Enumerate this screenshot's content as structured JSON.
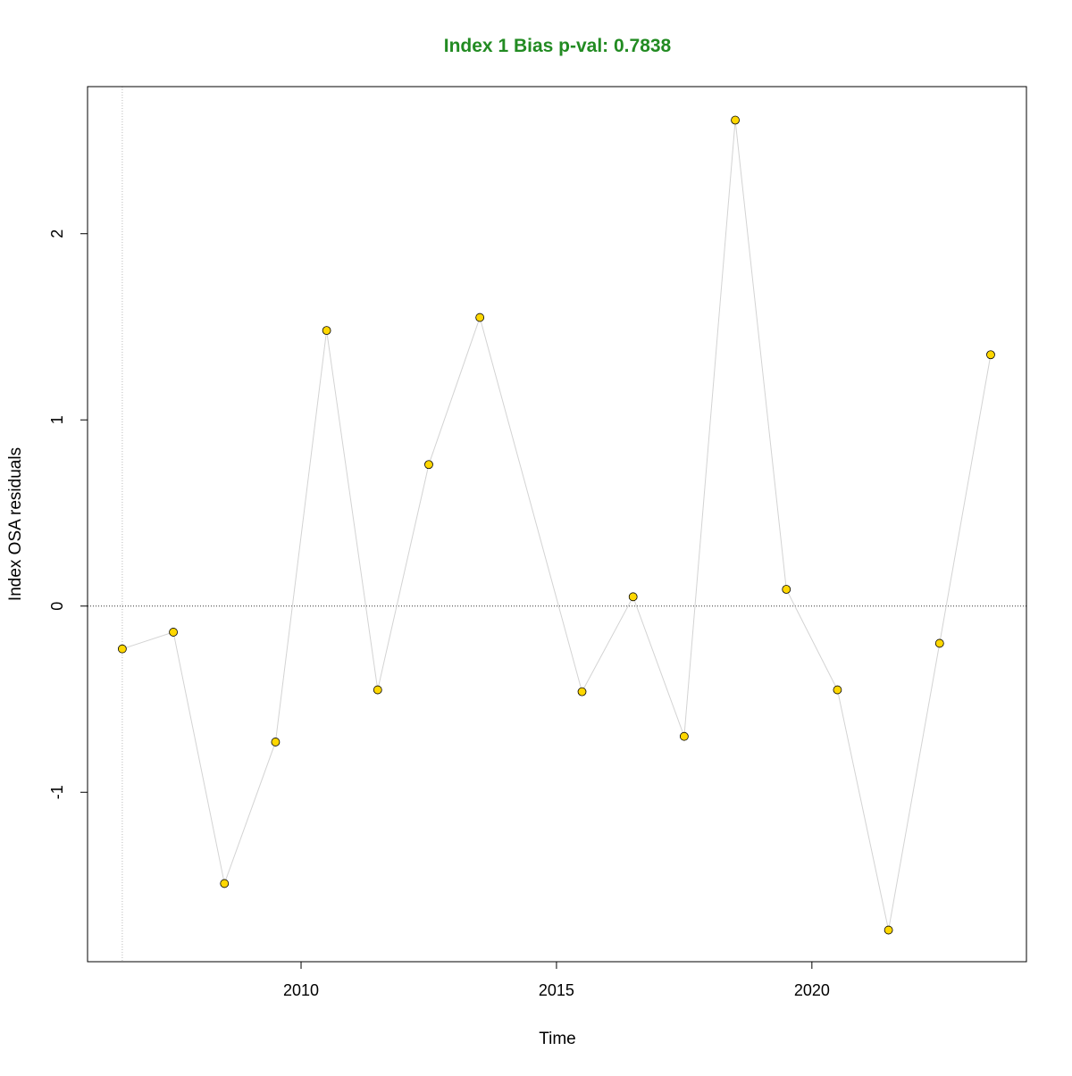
{
  "chart_data": {
    "type": "line",
    "title": "Index 1 Bias p-val: 0.7838",
    "title_color": "#228B22",
    "xlabel": "Time",
    "ylabel": "Index OSA residuals",
    "xlim": [
      2005.82,
      2024.2
    ],
    "ylim": [
      -1.91,
      2.79
    ],
    "xticks": [
      2010,
      2015,
      2020
    ],
    "yticks": [
      -1,
      0,
      1,
      2
    ],
    "grid": false,
    "reference_lines": {
      "horizontal": 0,
      "vertical": 2006.5
    },
    "point_color": "#FFD700",
    "line_color": "#D3D3D3",
    "x": [
      2006.5,
      2007.5,
      2008.5,
      2009.5,
      2010.5,
      2011.5,
      2012.5,
      2013.5,
      2015.5,
      2016.5,
      2017.5,
      2018.5,
      2019.5,
      2020.5,
      2021.5,
      2022.5,
      2023.5
    ],
    "y": [
      -0.23,
      -0.14,
      -1.49,
      -0.73,
      1.48,
      -0.45,
      0.76,
      1.55,
      -0.46,
      0.05,
      -0.7,
      2.61,
      0.09,
      -0.45,
      -1.74,
      -0.2,
      1.35
    ]
  }
}
